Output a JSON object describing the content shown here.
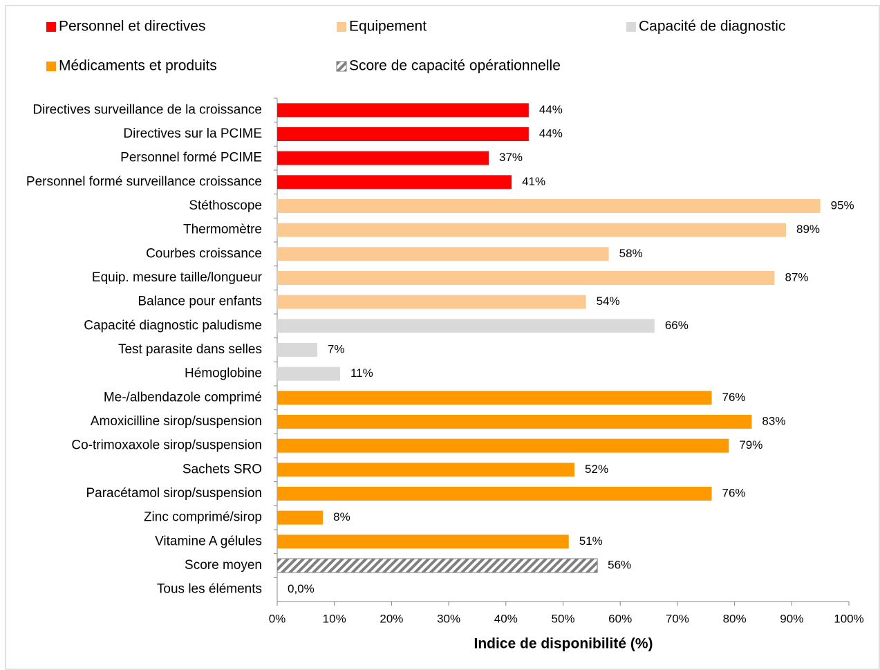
{
  "chart_data": {
    "type": "bar",
    "orientation": "horizontal",
    "categories": [
      "Directives surveillance de la croissance",
      "Directives sur la PCIME",
      "Personnel formé PCIME",
      "Personnel formé surveillance croissance",
      "Stéthoscope",
      "Thermomètre",
      "Courbes croissance",
      "Equip. mesure taille/longueur",
      "Balance pour enfants",
      "Capacité diagnostic paludisme",
      "Test parasite dans selles",
      "Hémoglobine",
      "Me-/albendazole comprimé",
      "Amoxicilline sirop/suspension",
      "Co-trimoxaxole sirop/suspension",
      "Sachets SRO",
      "Paracétamol sirop/suspension",
      "Zinc comprimé/sirop",
      "Vitamine A gélules",
      "Score moyen",
      "Tous les éléments"
    ],
    "series": [
      {
        "name": "Personnel et directives",
        "color": "#ff0000",
        "values": [
          44,
          44,
          37,
          41,
          null,
          null,
          null,
          null,
          null,
          null,
          null,
          null,
          null,
          null,
          null,
          null,
          null,
          null,
          null,
          null,
          null
        ],
        "value_labels": [
          "44%",
          "44%",
          "37%",
          "41%",
          null,
          null,
          null,
          null,
          null,
          null,
          null,
          null,
          null,
          null,
          null,
          null,
          null,
          null,
          null,
          null,
          null
        ]
      },
      {
        "name": "Equipement",
        "color": "#fcc990",
        "values": [
          null,
          null,
          null,
          null,
          95,
          89,
          58,
          87,
          54,
          null,
          null,
          null,
          null,
          null,
          null,
          null,
          null,
          null,
          null,
          null,
          null
        ],
        "value_labels": [
          null,
          null,
          null,
          null,
          "95%",
          "89%",
          "58%",
          "87%",
          "54%",
          null,
          null,
          null,
          null,
          null,
          null,
          null,
          null,
          null,
          null,
          null,
          null
        ]
      },
      {
        "name": "Capacité de diagnostic",
        "color": "#d9d9d9",
        "values": [
          null,
          null,
          null,
          null,
          null,
          null,
          null,
          null,
          null,
          66,
          7,
          11,
          null,
          null,
          null,
          null,
          null,
          null,
          null,
          null,
          null
        ],
        "value_labels": [
          null,
          null,
          null,
          null,
          null,
          null,
          null,
          null,
          null,
          "66%",
          "7%",
          "11%",
          null,
          null,
          null,
          null,
          null,
          null,
          null,
          null,
          null
        ]
      },
      {
        "name": "Médicaments et produits",
        "color": "#ff9900",
        "values": [
          null,
          null,
          null,
          null,
          null,
          null,
          null,
          null,
          null,
          null,
          null,
          null,
          76,
          83,
          79,
          52,
          76,
          8,
          51,
          null,
          null
        ],
        "value_labels": [
          null,
          null,
          null,
          null,
          null,
          null,
          null,
          null,
          null,
          null,
          null,
          null,
          "76%",
          "83%",
          "79%",
          "52%",
          "76%",
          "8%",
          "51%",
          null,
          null
        ]
      },
      {
        "name": "Score de capacité opérationnelle",
        "color": "#7f7f7f",
        "hatch": true,
        "values": [
          null,
          null,
          null,
          null,
          null,
          null,
          null,
          null,
          null,
          null,
          null,
          null,
          null,
          null,
          null,
          null,
          null,
          null,
          null,
          56,
          0
        ],
        "value_labels": [
          null,
          null,
          null,
          null,
          null,
          null,
          null,
          null,
          null,
          null,
          null,
          null,
          null,
          null,
          null,
          null,
          null,
          null,
          null,
          "56%",
          "0,0%"
        ]
      }
    ],
    "xlabel": "Indice de disponibilité (%)",
    "xlim": [
      0,
      100
    ],
    "xticks": [
      {
        "value": 0,
        "label": "0%"
      },
      {
        "value": 10,
        "label": "10%"
      },
      {
        "value": 20,
        "label": "20%"
      },
      {
        "value": 30,
        "label": "30%"
      },
      {
        "value": 40,
        "label": "40%"
      },
      {
        "value": 50,
        "label": "50%"
      },
      {
        "value": 60,
        "label": "60%"
      },
      {
        "value": 70,
        "label": "70%"
      },
      {
        "value": 80,
        "label": "80%"
      },
      {
        "value": 90,
        "label": "90%"
      },
      {
        "value": 100,
        "label": "100%"
      }
    ],
    "legend": "top"
  }
}
